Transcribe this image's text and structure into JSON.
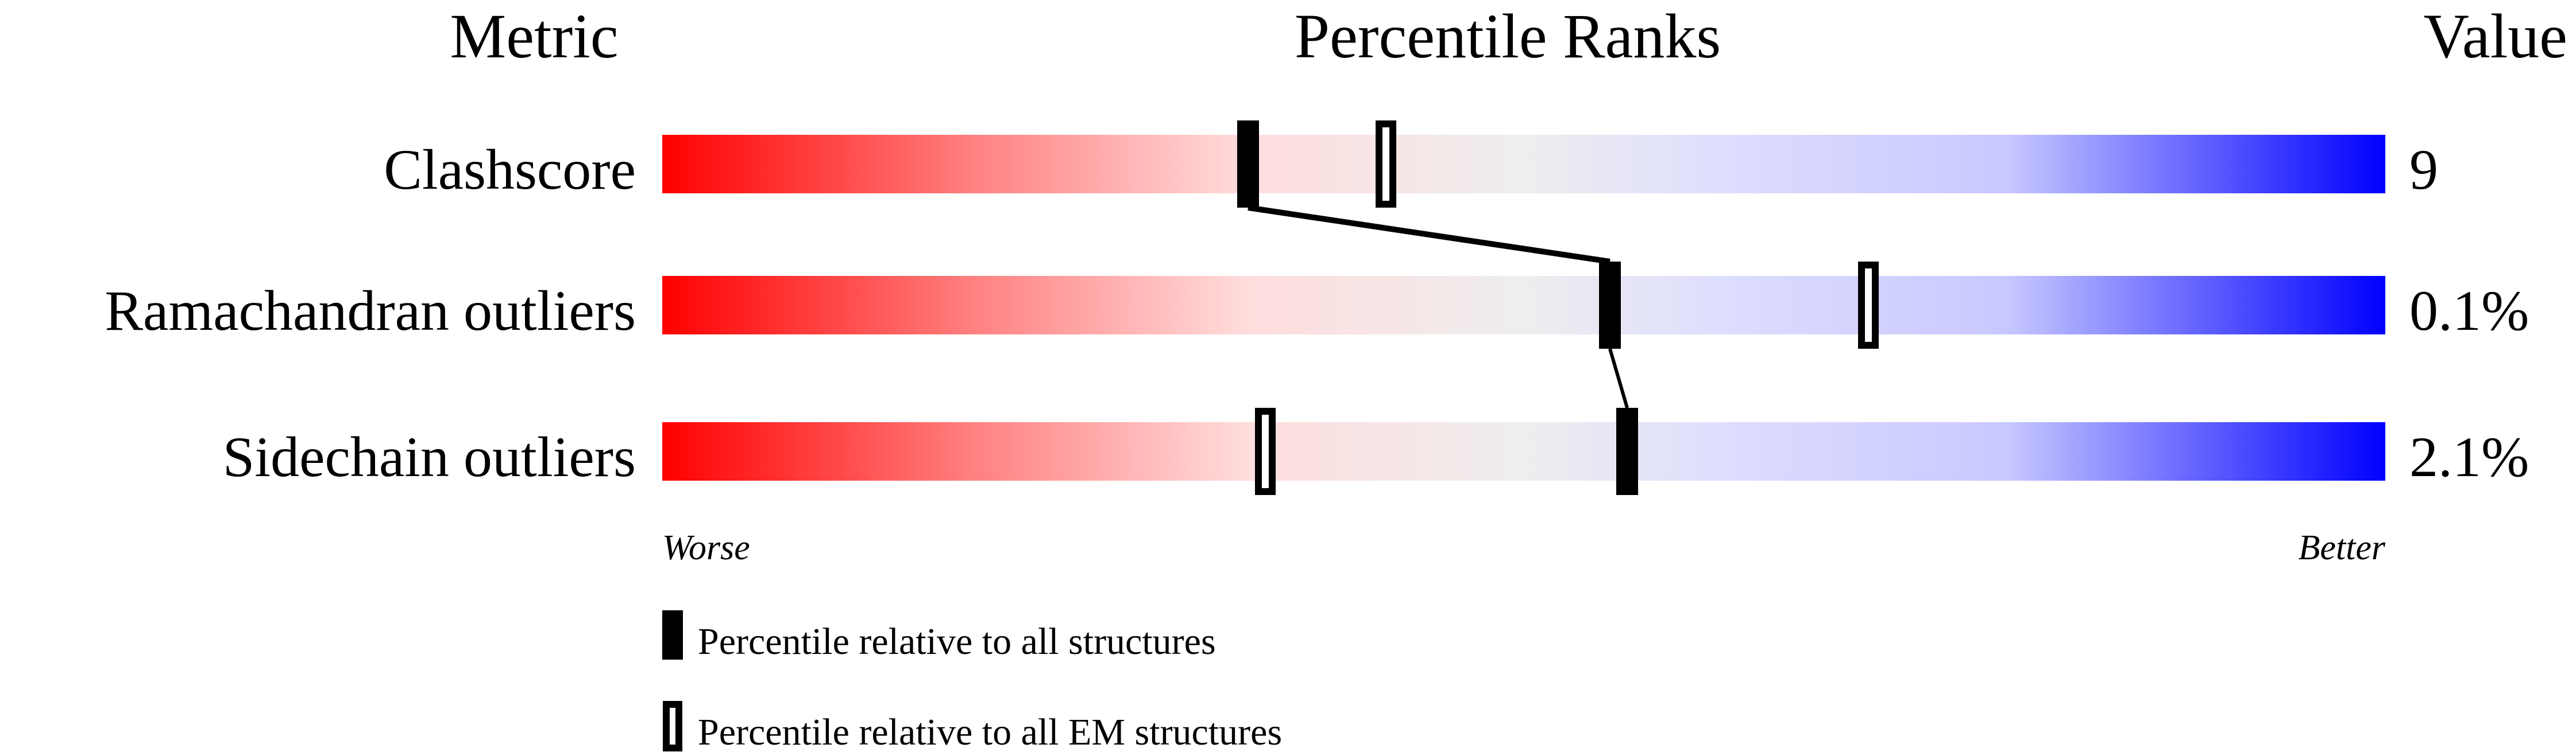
{
  "chart_data": {
    "type": "percentile-slider",
    "headers": {
      "metric": "Metric",
      "ranks": "Percentile Ranks",
      "value": "Value"
    },
    "xlim": [
      0,
      100
    ],
    "metrics": [
      {
        "name": "Clashscore",
        "value": "9",
        "percentile_all": 34,
        "percentile_em": 42
      },
      {
        "name": "Ramachandran outliers",
        "value": "0.1%",
        "percentile_all": 55,
        "percentile_em": 70
      },
      {
        "name": "Sidechain outliers",
        "value": "2.1%",
        "percentile_all": 56,
        "percentile_em": 35
      }
    ],
    "scale_labels": {
      "worse": "Worse",
      "better": "Better"
    },
    "legend": {
      "all": "Percentile relative to all structures",
      "em": "Percentile relative to all EM structures"
    },
    "colors": {
      "worse": "#ff0000",
      "middle": "#eeeeee",
      "better": "#0000ff",
      "marker": "#000000"
    }
  }
}
